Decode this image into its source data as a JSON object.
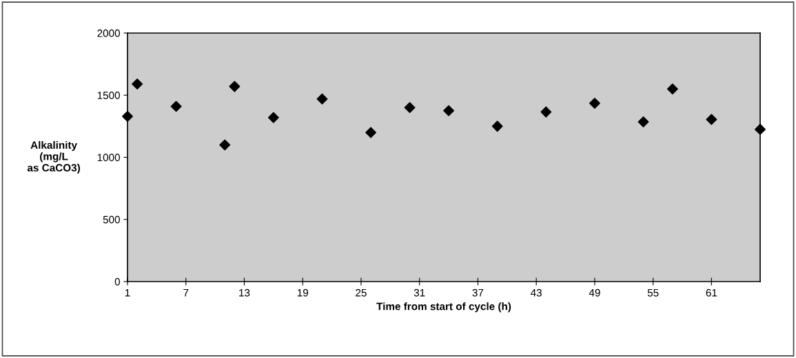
{
  "chart_data": {
    "type": "scatter",
    "xlabel": "Time from start of cycle (h)",
    "ylabel": "Alkalinity\n(mg/L\nas CaCO3)",
    "x": [
      1,
      2,
      6,
      11,
      12,
      16,
      21,
      26,
      30,
      34,
      39,
      44,
      49,
      54,
      57,
      61,
      66
    ],
    "series": [
      {
        "color": "#000000",
        "values": [
          1330,
          1590,
          1410,
          1100,
          1570,
          1320,
          1470,
          1200,
          1400,
          1375,
          1250,
          1365,
          1435,
          1285,
          1550,
          1305,
          1225
        ]
      }
    ],
    "xlim": [
      1,
      66
    ],
    "xticks": [
      1,
      7,
      13,
      19,
      25,
      31,
      37,
      43,
      49,
      55,
      61
    ],
    "ylim": [
      0,
      2000
    ],
    "yticks": [
      0,
      500,
      1000,
      1500,
      2000
    ],
    "marker": "diamond",
    "grid": false
  }
}
